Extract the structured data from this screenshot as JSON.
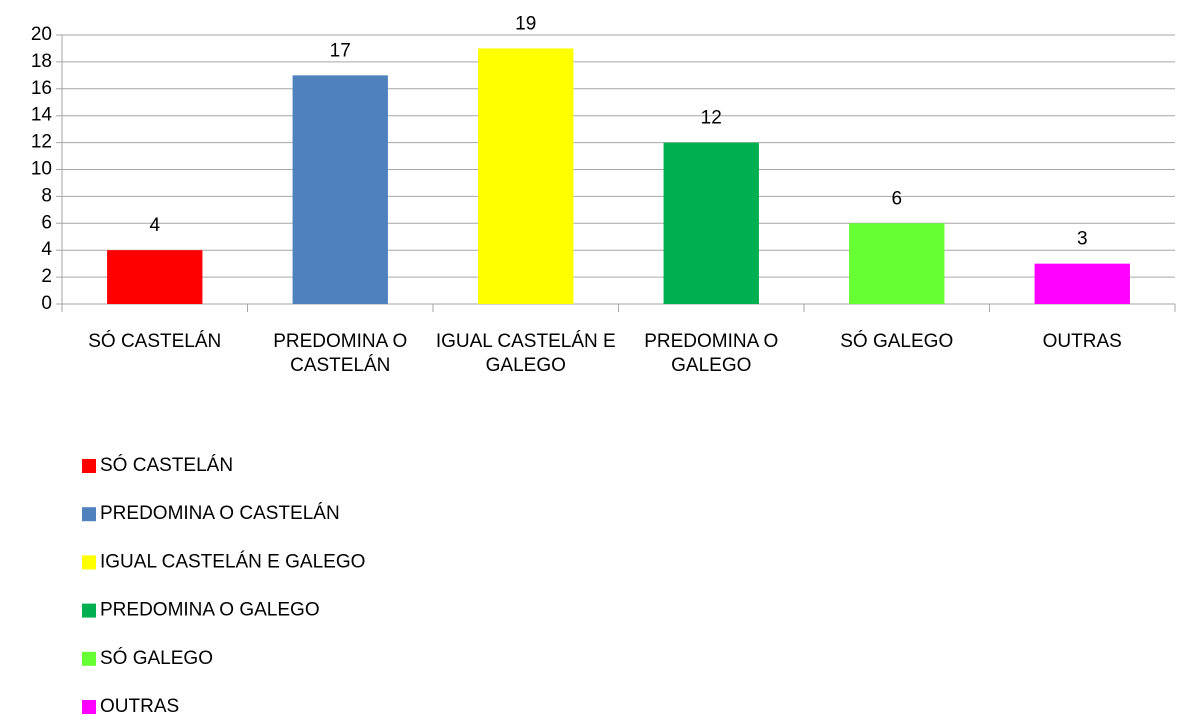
{
  "chart_data": {
    "type": "bar",
    "categories": [
      "SÓ CASTELÁN",
      "PREDOMINA O CASTELÁN",
      "IGUAL CASTELÁN E GALEGO",
      "PREDOMINA O GALEGO",
      "SÓ GALEGO",
      "OUTRAS"
    ],
    "values": [
      4,
      17,
      19,
      12,
      6,
      3
    ],
    "colors": [
      "#ff0000",
      "#4f81bd",
      "#ffff00",
      "#00b050",
      "#66ff33",
      "#ff00ff"
    ],
    "ylim": [
      0,
      20
    ],
    "yticks": [
      0,
      2,
      4,
      6,
      8,
      10,
      12,
      14,
      16,
      18,
      20
    ],
    "grid": true,
    "legend": "bottom-left"
  }
}
